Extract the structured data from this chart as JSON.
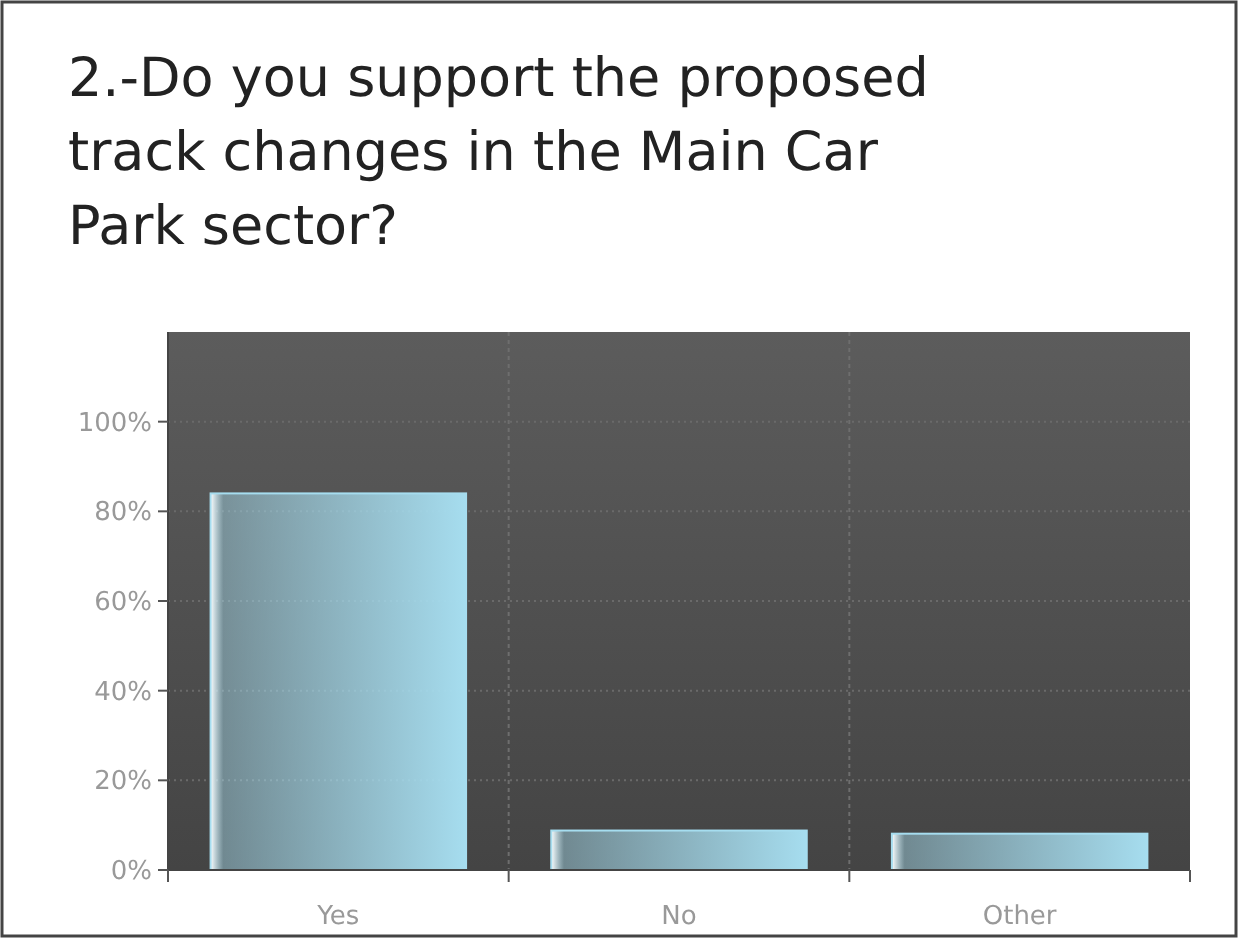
{
  "chart_data": {
    "type": "bar",
    "title": "2.-Do you support the proposed track changes in the Main Car Park sector?",
    "categories": [
      "Yes",
      "No",
      "Other"
    ],
    "values": [
      84,
      8.8,
      8.1
    ],
    "color": "#a6ddef",
    "ylim": [
      0,
      120
    ],
    "yticks": [
      {
        "value": 0,
        "label": "0%"
      },
      {
        "value": 20,
        "label": "20%"
      },
      {
        "value": 40,
        "label": "40%"
      },
      {
        "value": 60,
        "label": "60%"
      },
      {
        "value": 80,
        "label": "80%"
      },
      {
        "value": 100,
        "label": "100%"
      }
    ],
    "grid": true
  }
}
